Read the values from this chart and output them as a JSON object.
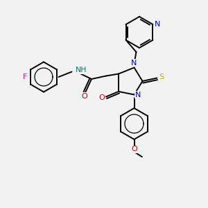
{
  "bg_color": "#f2f2f2",
  "atom_colors": {
    "C": "#000000",
    "N": "#0000cc",
    "O": "#cc0000",
    "S": "#ccaa00",
    "F": "#cc00cc",
    "H": "#007777"
  },
  "lw": 1.4,
  "fontsize": 7.5
}
